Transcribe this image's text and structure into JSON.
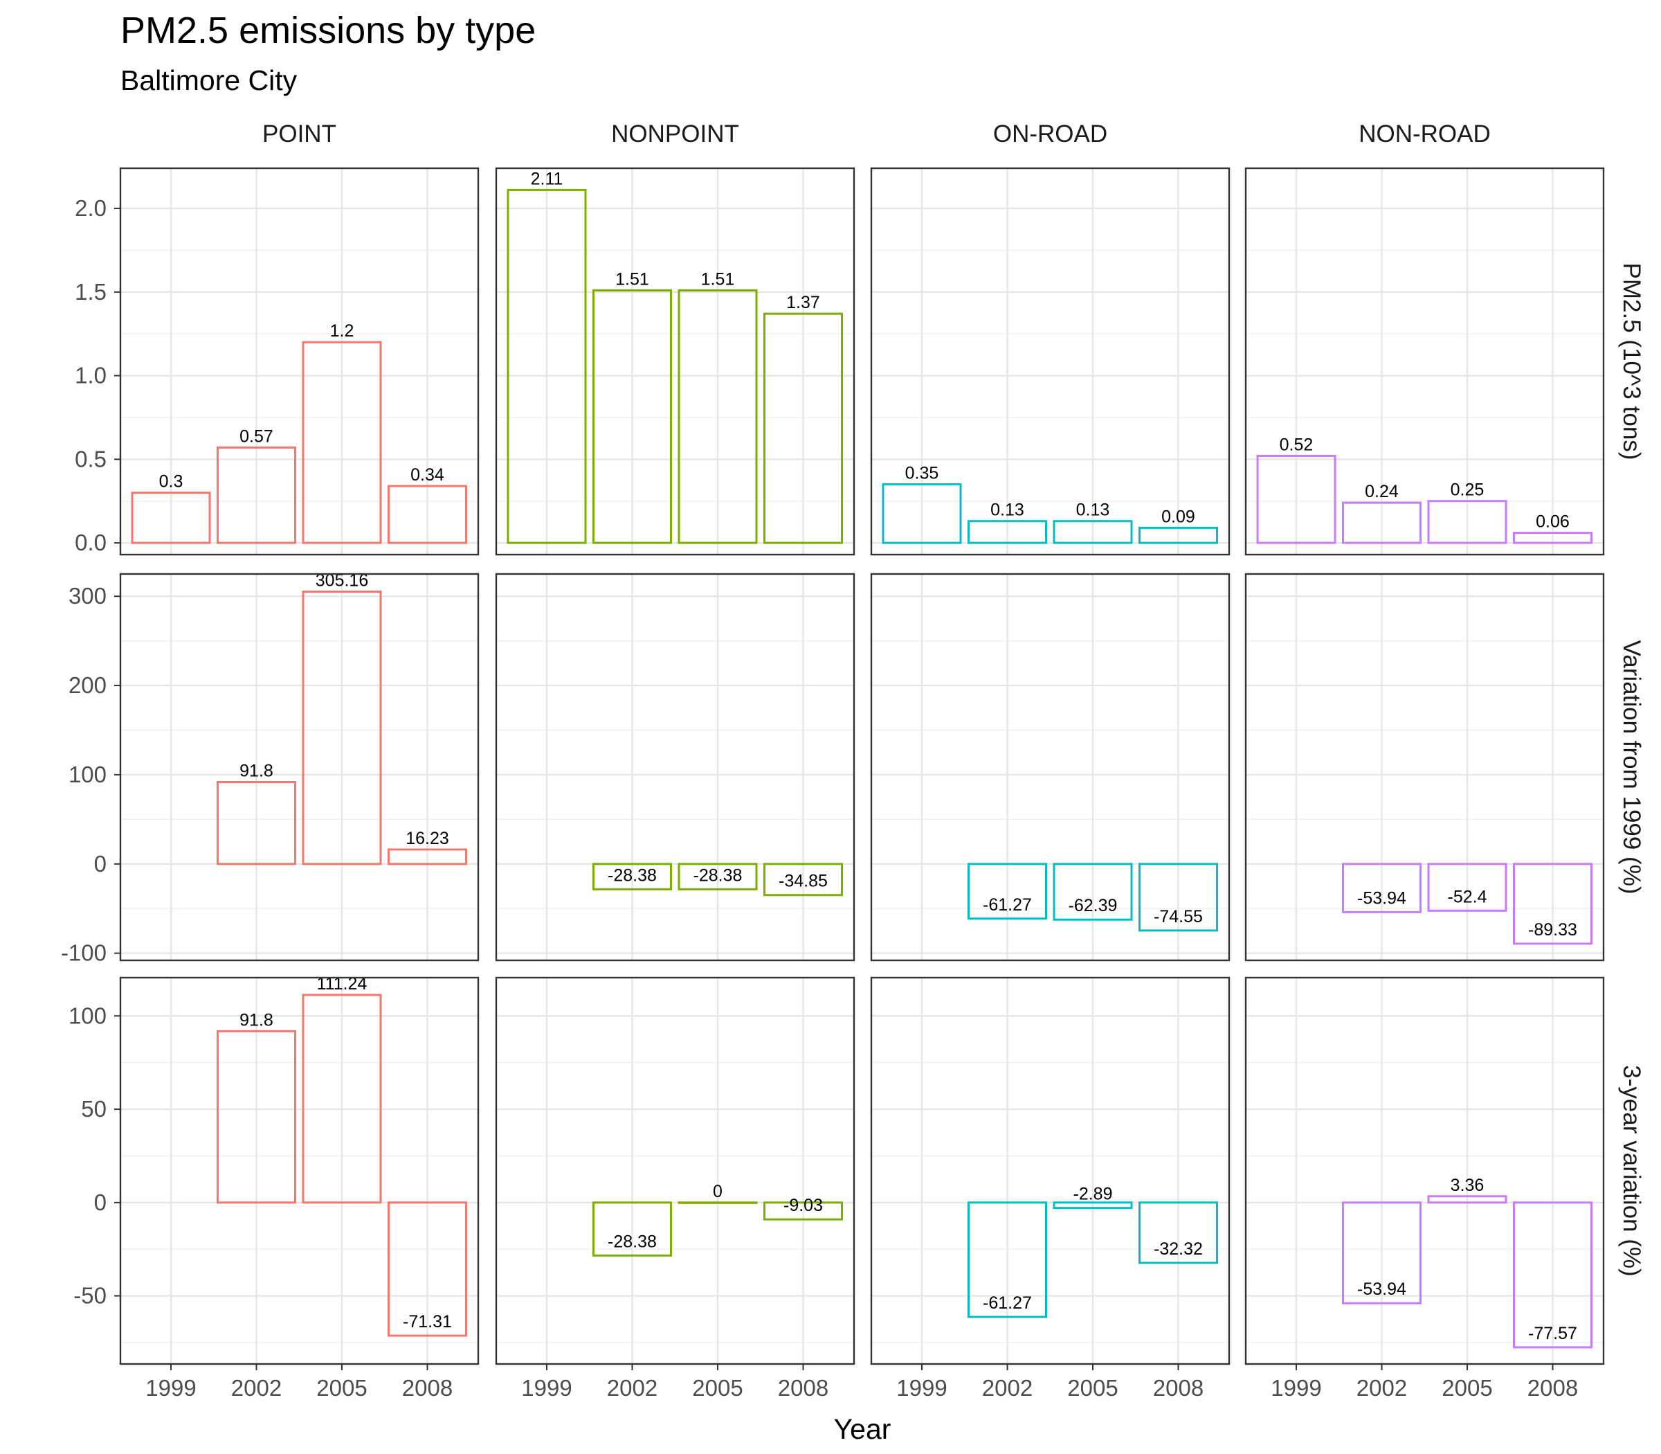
{
  "chart_data": {
    "type": "bar",
    "title": "PM2.5 emissions by type",
    "subtitle": "Baltimore City",
    "xlabel": "Year",
    "x": [
      "1999",
      "2002",
      "2005",
      "2008"
    ],
    "panels": [
      {
        "name": "POINT",
        "color": "#F8766D"
      },
      {
        "name": "NONPOINT",
        "color": "#7CAE00"
      },
      {
        "name": "ON-ROAD",
        "color": "#00BFC4"
      },
      {
        "name": "NON-ROAD",
        "color": "#C77CFF"
      }
    ],
    "rows": [
      {
        "label": "PM2.5 (10^3 tons)",
        "ylim": [
          -0.07,
          2.24
        ],
        "yticks": [
          0.0,
          0.5,
          1.0,
          1.5,
          2.0
        ],
        "ytick_labels": [
          "0.0",
          "0.5",
          "1.0",
          "1.5",
          "2.0"
        ],
        "values": [
          [
            0.3,
            0.57,
            1.2,
            0.34
          ],
          [
            2.11,
            1.51,
            1.51,
            1.37
          ],
          [
            0.35,
            0.13,
            0.13,
            0.09
          ],
          [
            0.52,
            0.24,
            0.25,
            0.06
          ]
        ],
        "value_labels": [
          [
            "0.3",
            "0.57",
            "1.2",
            "0.34"
          ],
          [
            "2.11",
            "1.51",
            "1.51",
            "1.37"
          ],
          [
            "0.35",
            "0.13",
            "0.13",
            "0.09"
          ],
          [
            "0.52",
            "0.24",
            "0.25",
            "0.06"
          ]
        ]
      },
      {
        "label": "Variation from 1999 (%)",
        "ylim": [
          -108,
          325
        ],
        "yticks": [
          -100,
          0,
          100,
          200,
          300
        ],
        "ytick_labels": [
          "-100",
          "0",
          "100",
          "200",
          "300"
        ],
        "values": [
          [
            null,
            91.8,
            305.16,
            16.23
          ],
          [
            null,
            -28.38,
            -28.38,
            -34.85
          ],
          [
            null,
            -61.27,
            -62.39,
            -74.55
          ],
          [
            null,
            -53.94,
            -52.4,
            -89.33
          ]
        ],
        "value_labels": [
          [
            null,
            "91.8",
            "305.16",
            "16.23"
          ],
          [
            null,
            "-28.38",
            "-28.38",
            "-34.85"
          ],
          [
            null,
            "-61.27",
            "-62.39",
            "-74.55"
          ],
          [
            null,
            "-53.94",
            "-52.4",
            "-89.33"
          ]
        ]
      },
      {
        "label": "3-year variation (%)",
        "ylim": [
          -86.5,
          120.5
        ],
        "yticks": [
          -50,
          0,
          50,
          100
        ],
        "ytick_labels": [
          "-50",
          "0",
          "50",
          "100"
        ],
        "values": [
          [
            null,
            91.8,
            111.24,
            -71.31
          ],
          [
            null,
            -28.38,
            0,
            -9.03
          ],
          [
            null,
            -61.27,
            -2.89,
            -32.32
          ],
          [
            null,
            -53.94,
            3.36,
            -77.57
          ]
        ],
        "value_labels": [
          [
            null,
            "91.8",
            "111.24",
            "-71.31"
          ],
          [
            null,
            "-28.38",
            "0",
            "-9.03"
          ],
          [
            null,
            "-61.27",
            "-2.89",
            "-32.32"
          ],
          [
            null,
            "-53.94",
            "3.36",
            "-77.57"
          ]
        ]
      }
    ],
    "grid": true,
    "legend": "none"
  }
}
